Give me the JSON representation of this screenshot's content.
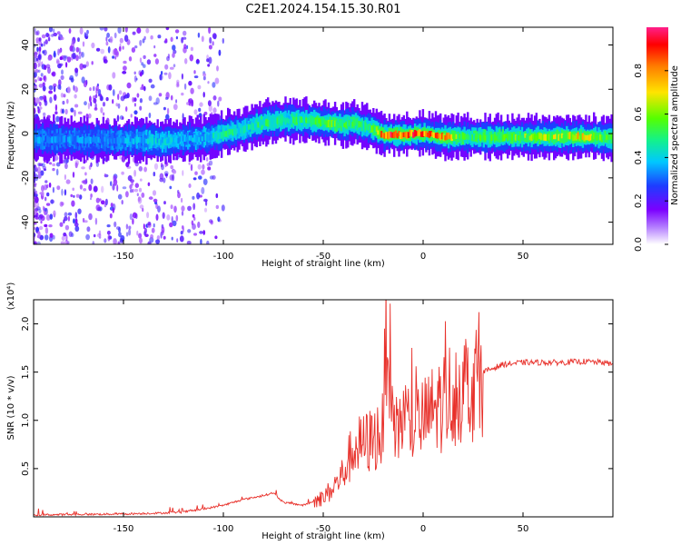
{
  "figure": {
    "title": "C2E1.2024.154.15.30.R01"
  },
  "colors": {
    "snr_line": "#e8302a",
    "colormap": [
      "#ffffff",
      "#7b00ff",
      "#1d3dff",
      "#00c8ff",
      "#13f28a",
      "#55ff00",
      "#ffe400",
      "#ff7d00",
      "#ff0000",
      "#ff1f8a"
    ]
  },
  "chart_data": [
    {
      "type": "heatmap",
      "xlabel": "Height of straight line (km)",
      "ylabel": "Frequency (Hz)",
      "xlim": [
        -195,
        95
      ],
      "ylim": [
        -50,
        48
      ],
      "xticks": [
        -150,
        -100,
        -50,
        0,
        50
      ],
      "yticks": [
        -40,
        -20,
        0,
        20,
        40
      ],
      "colorbar": {
        "label": "Normalized spectral amplitude",
        "range": [
          0,
          1
        ],
        "ticks": [
          "0.0",
          "0.2",
          "0.4",
          "0.6",
          "0.8"
        ]
      },
      "ridge": {
        "x": [
          -195,
          -180,
          -160,
          -140,
          -130,
          -120,
          -110,
          -100,
          -90,
          -80,
          -70,
          -60,
          -50,
          -40,
          -35,
          -30,
          -25,
          -20,
          -10,
          0,
          10,
          20,
          40,
          60,
          80,
          95
        ],
        "y": [
          -2.5,
          -2.5,
          -3,
          -3,
          -3.5,
          -2.5,
          -2,
          0,
          2,
          5,
          6,
          6,
          5,
          4,
          5,
          3,
          2,
          -0.5,
          -0.5,
          0,
          -1.5,
          -1.5,
          -1.5,
          -1.5,
          -1.5,
          -2
        ],
        "amp": [
          0.3,
          0.3,
          0.3,
          0.35,
          0.4,
          0.35,
          0.35,
          0.45,
          0.4,
          0.5,
          0.45,
          0.5,
          0.55,
          0.55,
          0.5,
          0.45,
          0.55,
          0.9,
          0.9,
          0.85,
          0.8,
          0.5,
          0.55,
          0.6,
          0.7,
          0.5
        ]
      }
    },
    {
      "type": "line",
      "xlabel": "Height of straight line (km)",
      "ylabel": "SNR (10 * v/v)",
      "ylabel_multiplier": "(x10⁴)",
      "xlim": [
        -195,
        95
      ],
      "ylim": [
        0,
        2.25
      ],
      "xticks": [
        -150,
        -100,
        -50,
        0,
        50
      ],
      "yticks": [
        0.5,
        1.0,
        1.5,
        2.0
      ],
      "series": [
        {
          "x": [
            -195,
            -150,
            -130,
            -120,
            -110,
            -100,
            -90,
            -80,
            -75,
            -70,
            -60,
            -50,
            -45,
            -40,
            -35,
            -30,
            -25,
            -20,
            -18,
            -15,
            -10,
            -5,
            0,
            5,
            10,
            15,
            20,
            25,
            30,
            40,
            50,
            60,
            70,
            80,
            90,
            95
          ],
          "y": [
            0.02,
            0.03,
            0.04,
            0.05,
            0.08,
            0.12,
            0.18,
            0.22,
            0.25,
            0.15,
            0.12,
            0.2,
            0.3,
            0.45,
            0.7,
            0.75,
            0.8,
            0.9,
            2.25,
            0.8,
            1.05,
            0.95,
            1.0,
            1.1,
            1.2,
            1.3,
            1.35,
            1.4,
            1.5,
            1.58,
            1.6,
            1.6,
            1.6,
            1.61,
            1.6,
            1.58
          ]
        }
      ]
    }
  ]
}
